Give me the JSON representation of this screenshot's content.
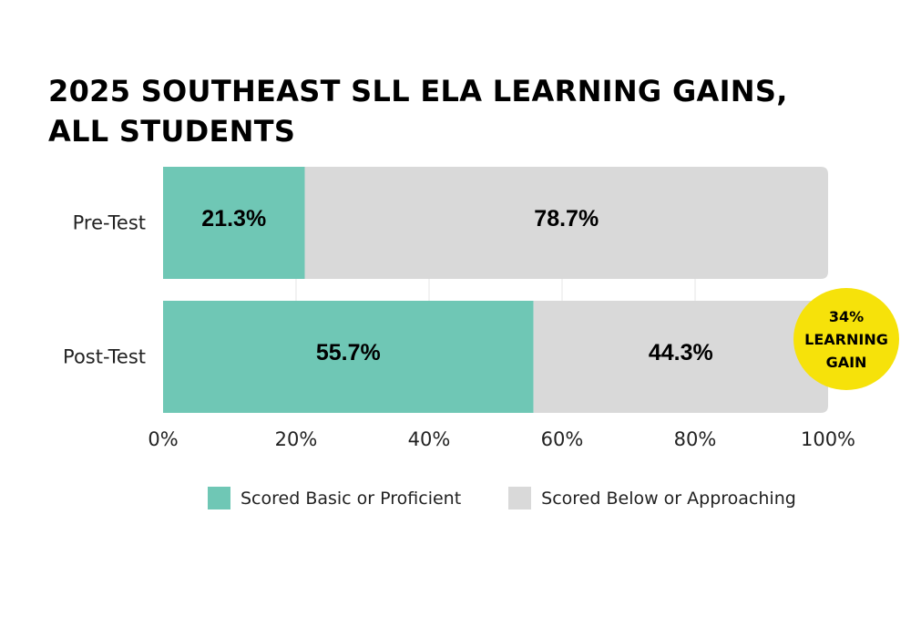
{
  "chart_data": {
    "type": "bar",
    "orientation": "horizontal",
    "stacked": true,
    "title": "2025 SOUTHEAST SLL ELA LEARNING GAINS, ALL STUDENTS",
    "title_lines": [
      "2025 SOUTHEAST SLL ELA LEARNING GAINS,",
      "ALL STUDENTS"
    ],
    "categories": [
      "Pre-Test",
      "Post-Test"
    ],
    "series": [
      {
        "name": "Scored Basic or Proficient",
        "values": [
          21.3,
          55.7
        ],
        "labels": [
          "21.3%",
          "55.7%"
        ],
        "color": "#6fc7b5"
      },
      {
        "name": "Scored Below or Approaching",
        "values": [
          78.7,
          44.3
        ],
        "labels": [
          "78.7%",
          "44.3%"
        ],
        "color": "#d9d9d9"
      }
    ],
    "xlim": [
      0,
      100
    ],
    "x_ticks": [
      0,
      20,
      40,
      60,
      80,
      100
    ],
    "x_tick_labels": [
      "0%",
      "20%",
      "40%",
      "60%",
      "80%",
      "100%"
    ],
    "grid": true,
    "legend_position": "bottom",
    "annotation": {
      "lines": [
        "34%",
        "LEARNING",
        "GAIN"
      ],
      "color": "#f6e20a"
    }
  }
}
